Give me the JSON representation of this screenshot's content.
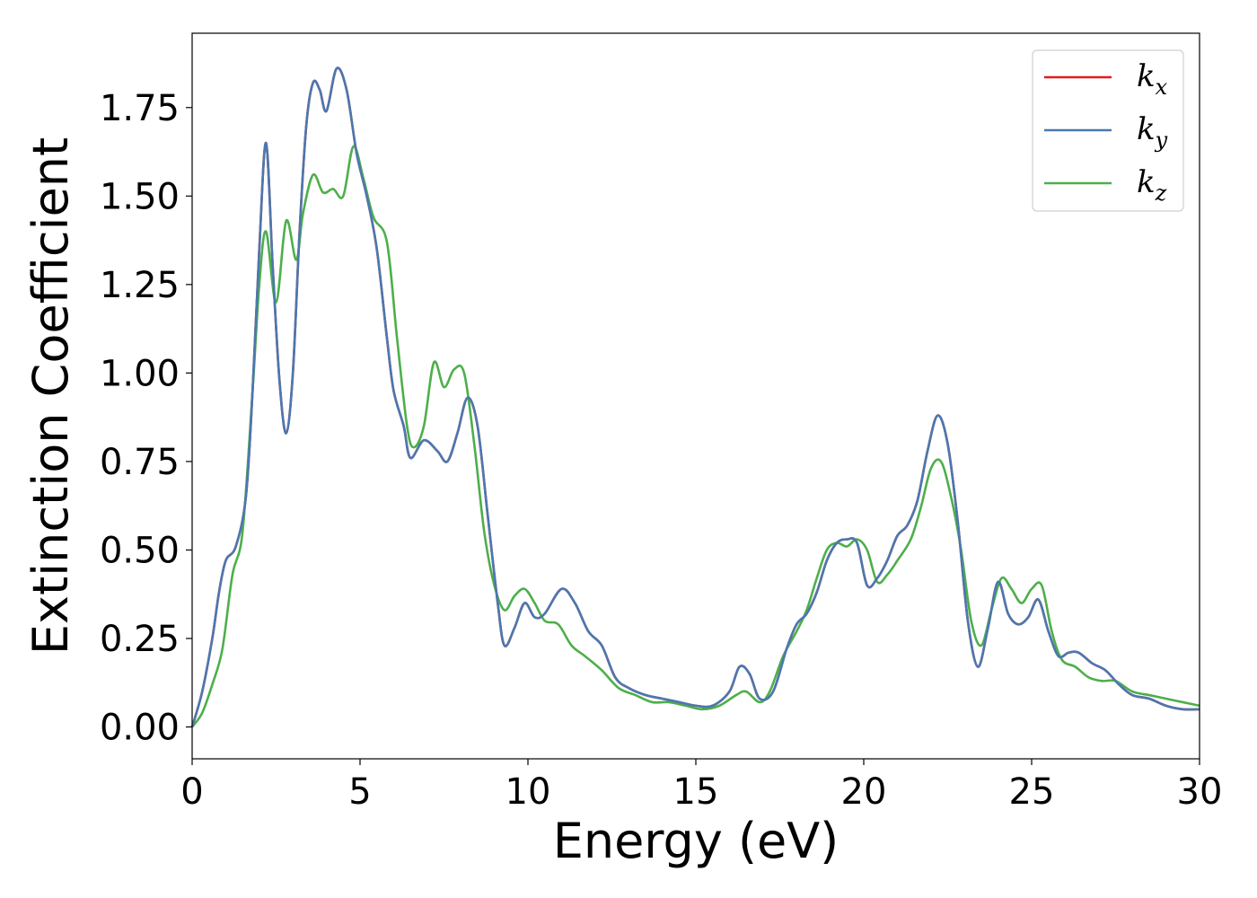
{
  "chart_data": {
    "type": "line",
    "xlabel": "Energy (eV)",
    "ylabel": "Extinction Coefficient",
    "xlim": [
      0,
      30
    ],
    "ylim": [
      -0.09,
      1.96
    ],
    "xticks": [
      0,
      5,
      10,
      15,
      20,
      25,
      30
    ],
    "xtick_labels": [
      "0",
      "5",
      "10",
      "15",
      "20",
      "25",
      "30"
    ],
    "yticks": [
      0,
      0.25,
      0.5,
      0.75,
      1.0,
      1.25,
      1.5,
      1.75
    ],
    "ytick_labels": [
      "0.00",
      "0.25",
      "0.50",
      "0.75",
      "1.00",
      "1.25",
      "1.50",
      "1.75"
    ],
    "grid": false,
    "legend": {
      "position": "top-right",
      "entries": [
        {
          "base": "k",
          "sub": "x",
          "color": "#e41a1c"
        },
        {
          "base": "k",
          "sub": "y",
          "color": "#4a78b0"
        },
        {
          "base": "k",
          "sub": "z",
          "color": "#4daf4a"
        }
      ]
    },
    "series": [
      {
        "name": "kx",
        "color": "#e41a1c",
        "x": [
          0,
          0.3,
          0.6,
          0.8,
          1.0,
          1.3,
          1.6,
          1.8,
          2.0,
          2.2,
          2.4,
          2.6,
          2.8,
          3.0,
          3.2,
          3.4,
          3.6,
          3.8,
          4.0,
          4.3,
          4.6,
          4.9,
          5.2,
          5.5,
          5.8,
          6.0,
          6.3,
          6.5,
          6.9,
          7.3,
          7.6,
          7.9,
          8.2,
          8.5,
          8.8,
          9.1,
          9.3,
          9.6,
          9.9,
          10.2,
          10.5,
          11.0,
          11.4,
          11.8,
          12.2,
          12.6,
          13.0,
          13.5,
          14.0,
          14.5,
          15.0,
          15.5,
          16.0,
          16.3,
          16.6,
          16.9,
          17.3,
          17.7,
          18.0,
          18.3,
          18.6,
          18.9,
          19.2,
          19.5,
          19.8,
          20.1,
          20.4,
          20.7,
          21.0,
          21.3,
          21.6,
          21.9,
          22.2,
          22.5,
          22.8,
          23.1,
          23.4,
          23.7,
          24.0,
          24.3,
          24.6,
          24.9,
          25.2,
          25.5,
          25.8,
          26.1,
          26.4,
          26.8,
          27.2,
          27.6,
          28.0,
          28.5,
          29.0,
          29.5,
          30.0
        ],
        "y": [
          0.0,
          0.1,
          0.25,
          0.38,
          0.47,
          0.51,
          0.65,
          0.95,
          1.35,
          1.65,
          1.3,
          0.98,
          0.83,
          1.0,
          1.4,
          1.7,
          1.82,
          1.8,
          1.74,
          1.86,
          1.8,
          1.62,
          1.5,
          1.35,
          1.1,
          0.95,
          0.85,
          0.76,
          0.81,
          0.78,
          0.75,
          0.83,
          0.93,
          0.85,
          0.6,
          0.35,
          0.23,
          0.28,
          0.35,
          0.31,
          0.32,
          0.39,
          0.35,
          0.27,
          0.23,
          0.14,
          0.11,
          0.09,
          0.08,
          0.07,
          0.06,
          0.06,
          0.1,
          0.17,
          0.15,
          0.08,
          0.1,
          0.22,
          0.29,
          0.32,
          0.38,
          0.47,
          0.52,
          0.53,
          0.52,
          0.4,
          0.42,
          0.47,
          0.54,
          0.57,
          0.64,
          0.78,
          0.88,
          0.8,
          0.58,
          0.3,
          0.17,
          0.28,
          0.41,
          0.32,
          0.29,
          0.31,
          0.36,
          0.27,
          0.2,
          0.21,
          0.21,
          0.18,
          0.16,
          0.12,
          0.09,
          0.08,
          0.06,
          0.05,
          0.05
        ]
      },
      {
        "name": "ky",
        "color": "#4a78b0",
        "x": [
          0,
          0.3,
          0.6,
          0.8,
          1.0,
          1.3,
          1.6,
          1.8,
          2.0,
          2.2,
          2.4,
          2.6,
          2.8,
          3.0,
          3.2,
          3.4,
          3.6,
          3.8,
          4.0,
          4.3,
          4.6,
          4.9,
          5.2,
          5.5,
          5.8,
          6.0,
          6.3,
          6.5,
          6.9,
          7.3,
          7.6,
          7.9,
          8.2,
          8.5,
          8.8,
          9.1,
          9.3,
          9.6,
          9.9,
          10.2,
          10.5,
          11.0,
          11.4,
          11.8,
          12.2,
          12.6,
          13.0,
          13.5,
          14.0,
          14.5,
          15.0,
          15.5,
          16.0,
          16.3,
          16.6,
          16.9,
          17.3,
          17.7,
          18.0,
          18.3,
          18.6,
          18.9,
          19.2,
          19.5,
          19.8,
          20.1,
          20.4,
          20.7,
          21.0,
          21.3,
          21.6,
          21.9,
          22.2,
          22.5,
          22.8,
          23.1,
          23.4,
          23.7,
          24.0,
          24.3,
          24.6,
          24.9,
          25.2,
          25.5,
          25.8,
          26.1,
          26.4,
          26.8,
          27.2,
          27.6,
          28.0,
          28.5,
          29.0,
          29.5,
          30.0
        ],
        "y": [
          0.0,
          0.1,
          0.25,
          0.38,
          0.47,
          0.51,
          0.65,
          0.95,
          1.35,
          1.65,
          1.3,
          0.98,
          0.83,
          1.0,
          1.4,
          1.7,
          1.82,
          1.8,
          1.74,
          1.86,
          1.8,
          1.62,
          1.5,
          1.35,
          1.1,
          0.95,
          0.85,
          0.76,
          0.81,
          0.78,
          0.75,
          0.83,
          0.93,
          0.85,
          0.6,
          0.35,
          0.23,
          0.28,
          0.35,
          0.31,
          0.32,
          0.39,
          0.35,
          0.27,
          0.23,
          0.14,
          0.11,
          0.09,
          0.08,
          0.07,
          0.06,
          0.06,
          0.1,
          0.17,
          0.15,
          0.08,
          0.1,
          0.22,
          0.29,
          0.32,
          0.38,
          0.47,
          0.52,
          0.53,
          0.52,
          0.4,
          0.42,
          0.47,
          0.54,
          0.57,
          0.64,
          0.78,
          0.88,
          0.8,
          0.58,
          0.3,
          0.17,
          0.28,
          0.41,
          0.32,
          0.29,
          0.31,
          0.36,
          0.27,
          0.2,
          0.21,
          0.21,
          0.18,
          0.16,
          0.12,
          0.09,
          0.08,
          0.06,
          0.05,
          0.05
        ]
      },
      {
        "name": "kz",
        "color": "#4daf4a",
        "x": [
          0,
          0.3,
          0.6,
          0.9,
          1.2,
          1.5,
          1.8,
          2.0,
          2.2,
          2.5,
          2.8,
          3.1,
          3.3,
          3.6,
          3.9,
          4.2,
          4.5,
          4.8,
          5.1,
          5.4,
          5.8,
          6.1,
          6.4,
          6.6,
          6.9,
          7.2,
          7.5,
          7.8,
          8.1,
          8.4,
          8.7,
          9.0,
          9.3,
          9.6,
          9.9,
          10.2,
          10.5,
          10.9,
          11.3,
          11.7,
          12.2,
          12.7,
          13.2,
          13.7,
          14.2,
          14.7,
          15.2,
          15.7,
          16.2,
          16.5,
          16.9,
          17.2,
          17.6,
          18.0,
          18.3,
          18.6,
          18.9,
          19.2,
          19.5,
          19.8,
          20.1,
          20.4,
          20.7,
          21.0,
          21.4,
          21.7,
          22.0,
          22.3,
          22.6,
          22.9,
          23.2,
          23.5,
          23.8,
          24.1,
          24.4,
          24.7,
          25.0,
          25.3,
          25.6,
          25.9,
          26.3,
          26.7,
          27.1,
          27.5,
          28.0,
          28.5,
          29.0,
          29.5,
          30.0
        ],
        "y": [
          0.0,
          0.04,
          0.12,
          0.22,
          0.43,
          0.55,
          0.95,
          1.25,
          1.4,
          1.2,
          1.43,
          1.32,
          1.45,
          1.56,
          1.51,
          1.52,
          1.5,
          1.64,
          1.55,
          1.44,
          1.37,
          1.1,
          0.85,
          0.79,
          0.85,
          1.03,
          0.96,
          1.01,
          1.0,
          0.8,
          0.55,
          0.4,
          0.33,
          0.37,
          0.39,
          0.35,
          0.3,
          0.29,
          0.23,
          0.2,
          0.16,
          0.11,
          0.09,
          0.07,
          0.07,
          0.06,
          0.05,
          0.06,
          0.09,
          0.1,
          0.07,
          0.1,
          0.2,
          0.27,
          0.33,
          0.42,
          0.5,
          0.52,
          0.51,
          0.53,
          0.5,
          0.41,
          0.43,
          0.47,
          0.53,
          0.62,
          0.73,
          0.75,
          0.65,
          0.5,
          0.3,
          0.23,
          0.33,
          0.42,
          0.39,
          0.35,
          0.39,
          0.4,
          0.27,
          0.19,
          0.17,
          0.14,
          0.13,
          0.13,
          0.1,
          0.09,
          0.08,
          0.07,
          0.06
        ]
      }
    ]
  }
}
